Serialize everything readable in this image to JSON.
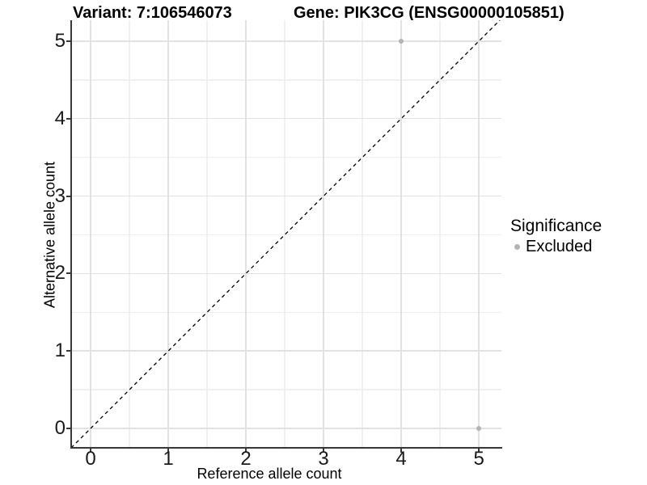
{
  "chart_data": {
    "type": "scatter",
    "title_left": "Variant: 7:106546073",
    "title_right": "Gene: PIK3CG (ENSG00000105851)",
    "xlabel": "Reference allele count",
    "ylabel": "Alternative allele count",
    "xticks": [
      0,
      1,
      2,
      3,
      4,
      5
    ],
    "yticks": [
      0,
      1,
      2,
      3,
      4,
      5
    ],
    "xminor": [
      0.5,
      1.5,
      2.5,
      3.5,
      4.5
    ],
    "yminor": [
      0.5,
      1.5,
      2.5,
      3.5,
      4.5
    ],
    "xlim": [
      -0.25,
      5.29
    ],
    "ylim": [
      -0.25,
      5.27
    ],
    "grid": true,
    "points": [
      {
        "x": 4,
        "y": 5,
        "significance": "Excluded"
      },
      {
        "x": 5,
        "y": 0,
        "significance": "Excluded"
      }
    ],
    "reference_line": {
      "type": "identity",
      "style": "dashed",
      "color": "#000000"
    },
    "legend": {
      "title": "Significance",
      "position": "right",
      "items": [
        {
          "label": "Excluded",
          "color": "#b4b4b4"
        }
      ]
    },
    "colors": {
      "background": "#ffffff",
      "axis_line": "#383838",
      "tick_label": "#1a1a1a",
      "grid_major": "#e2e2e2",
      "grid_minor": "#f0f0f0",
      "point": "#b4b4b4",
      "text": "#000000"
    }
  }
}
